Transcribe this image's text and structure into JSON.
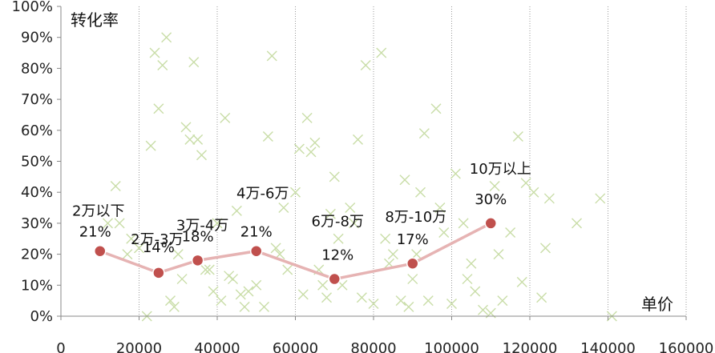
{
  "chart_data": {
    "type": "scatter",
    "title": "",
    "ylabel": "转化率",
    "xlabel": "单价",
    "xlim": [
      0,
      160000
    ],
    "ylim": [
      0,
      1
    ],
    "x_ticks": [
      "0",
      "20000",
      "40000",
      "60000",
      "80000",
      "100000",
      "120000",
      "140000",
      "160000"
    ],
    "y_ticks": [
      "0%",
      "10%",
      "20%",
      "30%",
      "40%",
      "50%",
      "60%",
      "70%",
      "80%",
      "90%",
      "100%"
    ],
    "grid": "vertical dotted",
    "colors": {
      "line": "#E6B3B3",
      "marker": "#C0504D",
      "scatter": "#C9DDA8",
      "axis": "#888888"
    },
    "series": [
      {
        "name": "",
        "type": "line",
        "x": [
          10000,
          25000,
          35000,
          50000,
          70000,
          90000,
          110000
        ],
        "values": [
          0.21,
          0.14,
          0.18,
          0.21,
          0.12,
          0.17,
          0.3
        ],
        "categories": [
          "2万以下",
          "2万-3万",
          "3万-4万",
          "4万-6万",
          "6万-8万",
          "8万-10万",
          "10万以上"
        ],
        "labels": [
          "21%",
          "14%",
          "18%",
          "21%",
          "12%",
          "17%",
          "30%"
        ]
      },
      {
        "name": "",
        "type": "scatter",
        "points": [
          [
            12000,
            0.3
          ],
          [
            14000,
            0.42
          ],
          [
            15000,
            0.3
          ],
          [
            17000,
            0.2
          ],
          [
            18000,
            0.25
          ],
          [
            20000,
            0.22
          ],
          [
            22000,
            0.0
          ],
          [
            23000,
            0.55
          ],
          [
            24000,
            0.85
          ],
          [
            25000,
            0.67
          ],
          [
            26000,
            0.81
          ],
          [
            27000,
            0.9
          ],
          [
            28000,
            0.05
          ],
          [
            29000,
            0.03
          ],
          [
            30000,
            0.2
          ],
          [
            31000,
            0.12
          ],
          [
            32000,
            0.61
          ],
          [
            33000,
            0.57
          ],
          [
            34000,
            0.82
          ],
          [
            35000,
            0.57
          ],
          [
            36000,
            0.52
          ],
          [
            37000,
            0.15
          ],
          [
            38000,
            0.15
          ],
          [
            39000,
            0.08
          ],
          [
            40000,
            0.3
          ],
          [
            41000,
            0.05
          ],
          [
            42000,
            0.64
          ],
          [
            43000,
            0.13
          ],
          [
            44000,
            0.12
          ],
          [
            45000,
            0.34
          ],
          [
            46000,
            0.07
          ],
          [
            47000,
            0.03
          ],
          [
            48000,
            0.08
          ],
          [
            50000,
            0.1
          ],
          [
            52000,
            0.03
          ],
          [
            53000,
            0.58
          ],
          [
            54000,
            0.84
          ],
          [
            55000,
            0.22
          ],
          [
            56000,
            0.2
          ],
          [
            57000,
            0.35
          ],
          [
            58000,
            0.15
          ],
          [
            60000,
            0.4
          ],
          [
            61000,
            0.54
          ],
          [
            62000,
            0.07
          ],
          [
            63000,
            0.64
          ],
          [
            64000,
            0.53
          ],
          [
            65000,
            0.56
          ],
          [
            66000,
            0.15
          ],
          [
            67000,
            0.1
          ],
          [
            68000,
            0.06
          ],
          [
            69000,
            0.33
          ],
          [
            70000,
            0.45
          ],
          [
            71000,
            0.25
          ],
          [
            72000,
            0.1
          ],
          [
            74000,
            0.35
          ],
          [
            75000,
            0.3
          ],
          [
            76000,
            0.57
          ],
          [
            77000,
            0.06
          ],
          [
            78000,
            0.81
          ],
          [
            80000,
            0.04
          ],
          [
            82000,
            0.85
          ],
          [
            83000,
            0.25
          ],
          [
            84000,
            0.17
          ],
          [
            85000,
            0.2
          ],
          [
            87000,
            0.05
          ],
          [
            88000,
            0.44
          ],
          [
            89000,
            0.03
          ],
          [
            90000,
            0.12
          ],
          [
            91000,
            0.2
          ],
          [
            92000,
            0.4
          ],
          [
            93000,
            0.59
          ],
          [
            94000,
            0.05
          ],
          [
            96000,
            0.67
          ],
          [
            97000,
            0.35
          ],
          [
            98000,
            0.27
          ],
          [
            100000,
            0.04
          ],
          [
            101000,
            0.46
          ],
          [
            103000,
            0.3
          ],
          [
            104000,
            0.12
          ],
          [
            105000,
            0.17
          ],
          [
            106000,
            0.08
          ],
          [
            108000,
            0.02
          ],
          [
            110000,
            0.01
          ],
          [
            111000,
            0.42
          ],
          [
            112000,
            0.2
          ],
          [
            113000,
            0.05
          ],
          [
            115000,
            0.27
          ],
          [
            117000,
            0.58
          ],
          [
            118000,
            0.11
          ],
          [
            119000,
            0.43
          ],
          [
            121000,
            0.4
          ],
          [
            123000,
            0.06
          ],
          [
            124000,
            0.22
          ],
          [
            125000,
            0.38
          ],
          [
            132000,
            0.3
          ],
          [
            138000,
            0.38
          ],
          [
            141000,
            0.0
          ]
        ]
      }
    ]
  }
}
